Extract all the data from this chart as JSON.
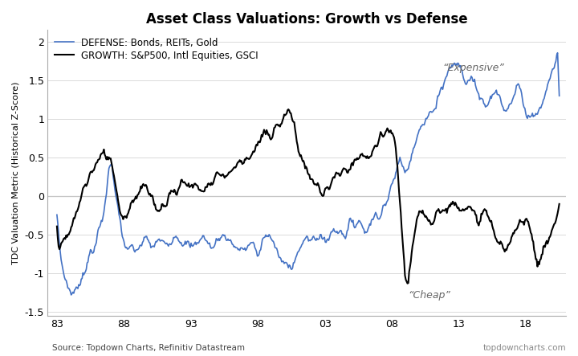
{
  "title": "Asset Class Valuations: Growth vs Defense",
  "ylabel": "TDC Valuation Metric (Historical Z-Score)",
  "source_text": "Source: Topdown Charts, Refinitiv Datastream",
  "watermark": "topdowncharts.com",
  "defense_label": "DEFENSE: Bonds, REITs, Gold",
  "growth_label": "GROWTH: S&P500, Intl Equities, GSCI",
  "defense_color": "#4472C4",
  "growth_color": "#000000",
  "expensive_text": "“Expensive”",
  "cheap_text": "“Cheap”",
  "xlim_min": 1982.3,
  "xlim_max": 2021.0,
  "ylim_min": -1.55,
  "ylim_max": 2.15,
  "xtick_years": [
    1983,
    1988,
    1993,
    1998,
    2003,
    2008,
    2013,
    2018
  ],
  "xtick_labels": [
    "83",
    "88",
    "93",
    "98",
    "03",
    "08",
    "13",
    "18"
  ],
  "ytick_vals": [
    -1.5,
    -1.0,
    -0.5,
    0.0,
    0.5,
    1.0,
    1.5,
    2.0
  ],
  "ytick_labels": [
    "-1.5",
    "-1",
    "-0.5",
    "0",
    "0.5",
    "1",
    "1.5",
    "2"
  ],
  "background_color": "#ffffff",
  "grid_color": "#cccccc",
  "spine_color": "#aaaaaa",
  "expensive_x": 2011.8,
  "expensive_y": 1.62,
  "cheap_x": 2009.2,
  "cheap_y": -1.32
}
